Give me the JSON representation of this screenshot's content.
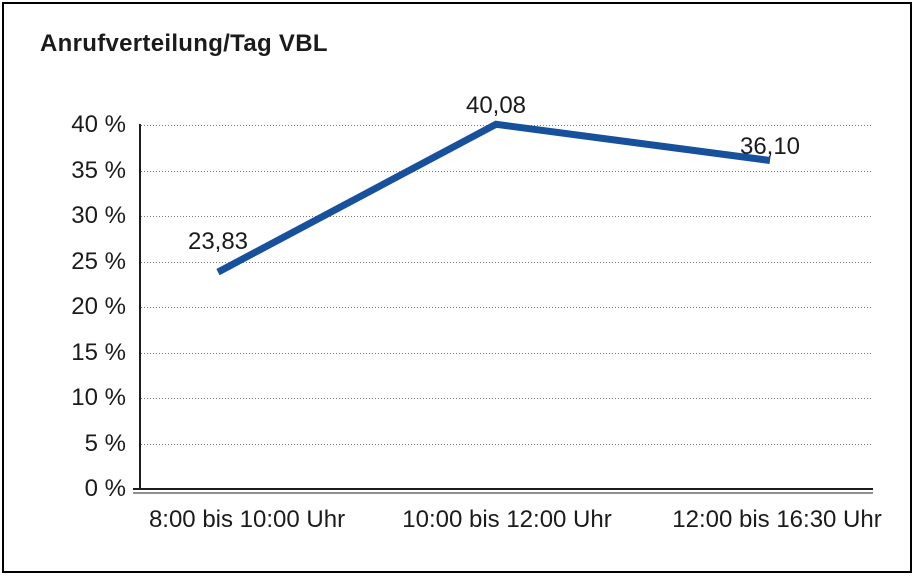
{
  "chart_data": {
    "type": "line",
    "title": "Anrufverteilung/Tag VBL",
    "categories": [
      "8:00 bis 10:00 Uhr",
      "10:00 bis 12:00 Uhr",
      "12:00 bis 16:30 Uhr"
    ],
    "values": [
      23.83,
      40.08,
      36.1
    ],
    "point_labels": [
      "23,83",
      "40,08",
      "36,10"
    ],
    "xlabel": "",
    "ylabel": "",
    "ylim": [
      0,
      40
    ],
    "ytick_values": [
      0,
      5,
      10,
      15,
      20,
      25,
      30,
      35,
      40
    ],
    "ytick_labels": [
      "0 %",
      "5 %",
      "10 %",
      "15 %",
      "20 %",
      "25 %",
      "30 %",
      "35 %",
      "40 %"
    ],
    "grid": "horizontal-dotted",
    "legend_position": "none",
    "colors": {
      "line": "#17519c",
      "text": "#1b1b1b",
      "gridline": "#767676",
      "axis": "#1c1c1c",
      "axis_shadow": "#8f8f8f",
      "background": "#ffffff",
      "border": "#000000"
    }
  }
}
